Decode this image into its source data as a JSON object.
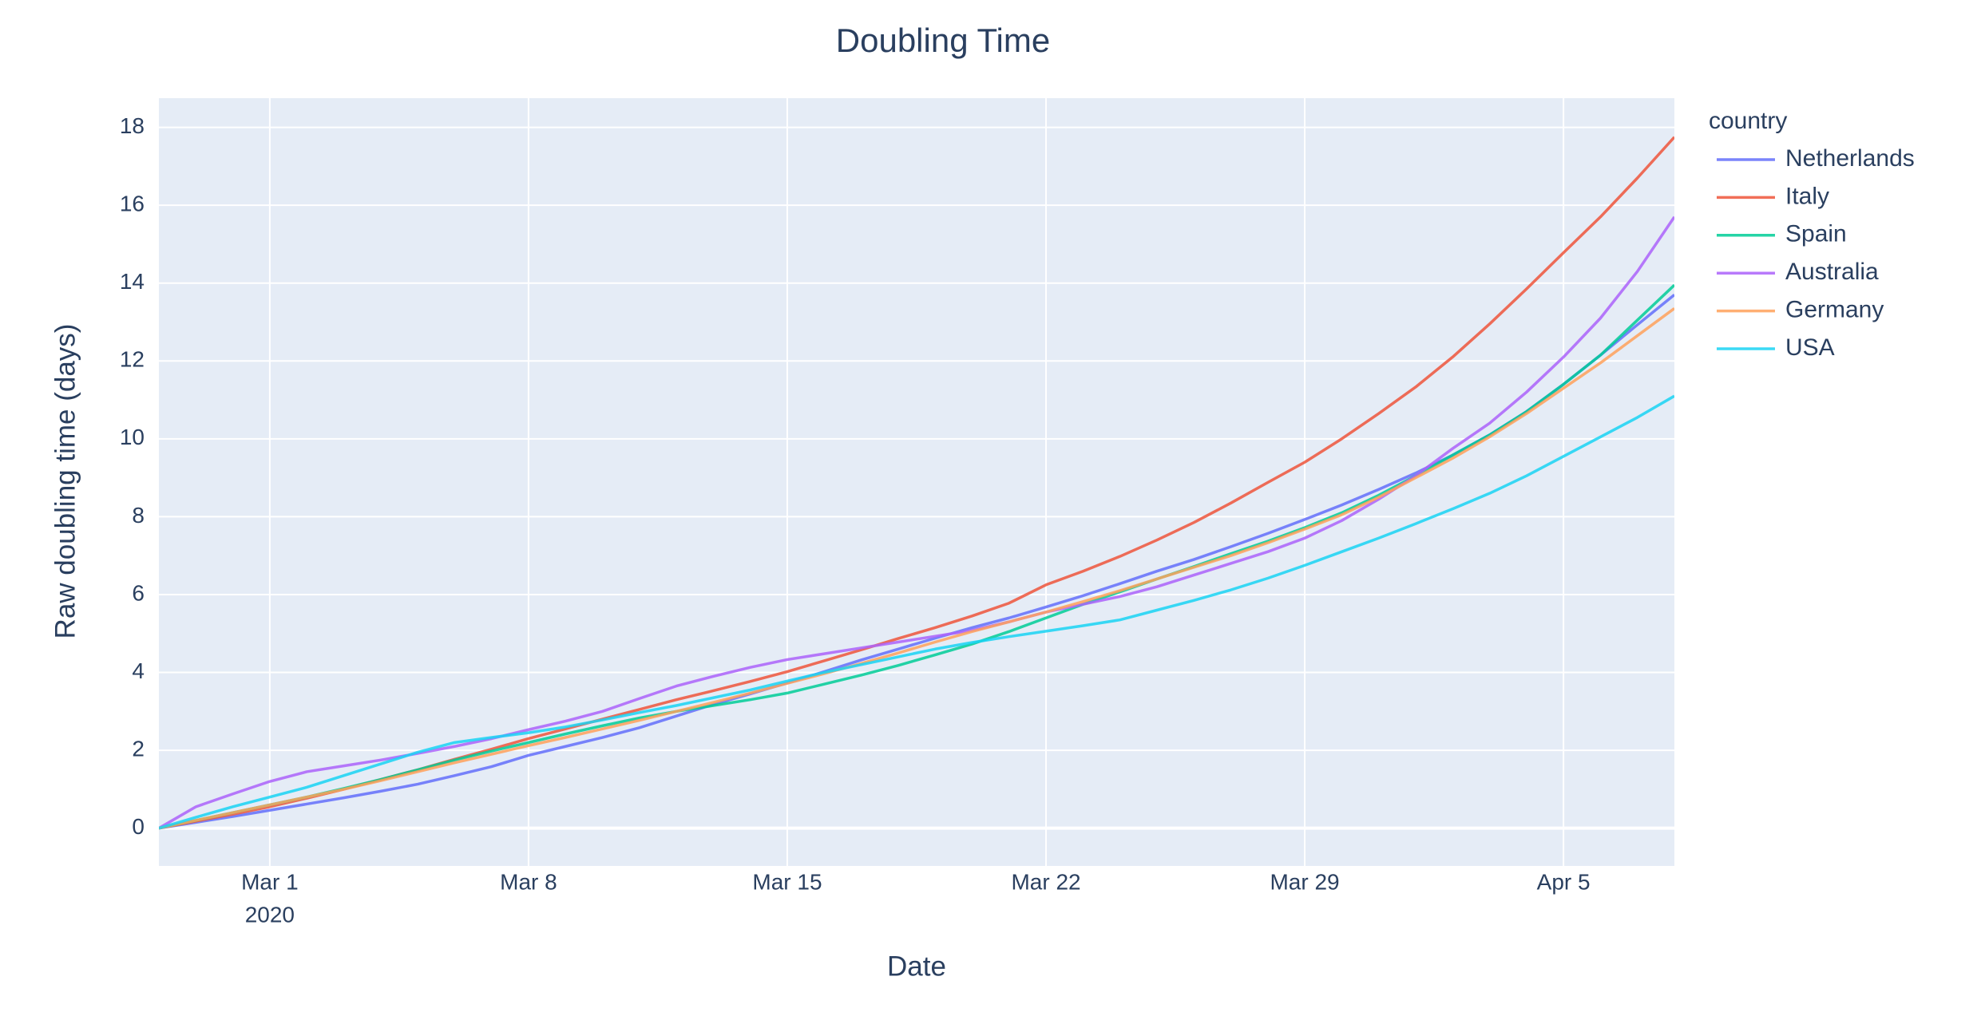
{
  "chart_data": {
    "type": "line",
    "title": "Doubling Time",
    "x_label": "Date",
    "y_label": "Raw doubling time (days)",
    "legend_title": "country",
    "legend": "right",
    "x": [
      "2020-02-27",
      "2020-02-28",
      "2020-02-29",
      "2020-03-01",
      "2020-03-02",
      "2020-03-03",
      "2020-03-04",
      "2020-03-05",
      "2020-03-06",
      "2020-03-07",
      "2020-03-08",
      "2020-03-09",
      "2020-03-10",
      "2020-03-11",
      "2020-03-12",
      "2020-03-13",
      "2020-03-14",
      "2020-03-15",
      "2020-03-16",
      "2020-03-17",
      "2020-03-18",
      "2020-03-19",
      "2020-03-20",
      "2020-03-21",
      "2020-03-22",
      "2020-03-23",
      "2020-03-24",
      "2020-03-25",
      "2020-03-26",
      "2020-03-27",
      "2020-03-28",
      "2020-03-29",
      "2020-03-30",
      "2020-03-31",
      "2020-04-01",
      "2020-04-02",
      "2020-04-03",
      "2020-04-04",
      "2020-04-05",
      "2020-04-06",
      "2020-04-07",
      "2020-04-08"
    ],
    "xlim": [
      "2020-02-27",
      "2020-04-08"
    ],
    "xticks": [
      {
        "value": "2020-03-01",
        "label": "Mar 1"
      },
      {
        "value": "2020-03-08",
        "label": "Mar 8"
      },
      {
        "value": "2020-03-15",
        "label": "Mar 15"
      },
      {
        "value": "2020-03-22",
        "label": "Mar 22"
      },
      {
        "value": "2020-03-29",
        "label": "Mar 29"
      },
      {
        "value": "2020-04-05",
        "label": "Apr 5"
      }
    ],
    "x_year_label": "2020",
    "ylim": [
      -0.97,
      18.75
    ],
    "yticks": [
      0,
      2,
      4,
      6,
      8,
      10,
      12,
      14,
      16,
      18
    ],
    "grid": true,
    "series": [
      {
        "name": "Netherlands",
        "color": "#636efa",
        "values": [
          0,
          0.15,
          0.3,
          0.46,
          0.62,
          0.78,
          0.95,
          1.13,
          1.35,
          1.58,
          1.87,
          2.1,
          2.33,
          2.58,
          2.88,
          3.18,
          3.45,
          3.73,
          4.02,
          4.32,
          4.6,
          4.88,
          5.15,
          5.4,
          5.68,
          5.97,
          6.28,
          6.6,
          6.9,
          7.23,
          7.57,
          7.93,
          8.3,
          8.7,
          9.12,
          9.58,
          10.1,
          10.7,
          11.4,
          12.15,
          12.93,
          13.7
        ]
      },
      {
        "name": "Italy",
        "color": "#ef553b",
        "values": [
          0,
          0.18,
          0.36,
          0.55,
          0.77,
          1.0,
          1.25,
          1.5,
          1.77,
          2.03,
          2.3,
          2.55,
          2.8,
          3.05,
          3.3,
          3.53,
          3.77,
          4.02,
          4.3,
          4.58,
          4.87,
          5.15,
          5.45,
          5.78,
          6.25,
          6.6,
          6.98,
          7.4,
          7.85,
          8.35,
          8.88,
          9.4,
          10.0,
          10.65,
          11.33,
          12.1,
          12.95,
          13.85,
          14.78,
          15.7,
          16.7,
          17.75
        ]
      },
      {
        "name": "Spain",
        "color": "#00cc96",
        "values": [
          0,
          0.2,
          0.4,
          0.6,
          0.8,
          1.02,
          1.25,
          1.5,
          1.75,
          1.98,
          2.2,
          2.42,
          2.63,
          2.83,
          3.0,
          3.15,
          3.3,
          3.47,
          3.7,
          3.93,
          4.18,
          4.45,
          4.73,
          5.05,
          5.4,
          5.75,
          6.07,
          6.4,
          6.72,
          7.05,
          7.37,
          7.72,
          8.1,
          8.55,
          9.05,
          9.58,
          10.1,
          10.7,
          11.4,
          12.15,
          13.05,
          13.95
        ]
      },
      {
        "name": "Australia",
        "color": "#ab63fa",
        "values": [
          0,
          0.55,
          0.88,
          1.2,
          1.45,
          1.6,
          1.75,
          1.92,
          2.1,
          2.3,
          2.53,
          2.75,
          3.0,
          3.33,
          3.65,
          3.9,
          4.13,
          4.33,
          4.48,
          4.63,
          4.78,
          4.93,
          5.08,
          5.3,
          5.55,
          5.75,
          5.95,
          6.2,
          6.5,
          6.8,
          7.1,
          7.45,
          7.9,
          8.45,
          9.05,
          9.75,
          10.4,
          11.2,
          12.1,
          13.1,
          14.3,
          15.7
        ]
      },
      {
        "name": "Germany",
        "color": "#ffa15a",
        "values": [
          0,
          0.2,
          0.4,
          0.6,
          0.8,
          1.0,
          1.22,
          1.45,
          1.68,
          1.9,
          2.12,
          2.33,
          2.55,
          2.77,
          3.0,
          3.23,
          3.47,
          3.72,
          3.97,
          4.23,
          4.5,
          4.78,
          5.05,
          5.3,
          5.55,
          5.82,
          6.1,
          6.4,
          6.7,
          7.0,
          7.33,
          7.68,
          8.05,
          8.5,
          9.0,
          9.5,
          10.05,
          10.65,
          11.3,
          11.95,
          12.65,
          13.35
        ]
      },
      {
        "name": "USA",
        "color": "#19d3f3",
        "values": [
          0,
          0.28,
          0.55,
          0.8,
          1.05,
          1.35,
          1.65,
          1.95,
          2.2,
          2.33,
          2.45,
          2.6,
          2.78,
          2.97,
          3.15,
          3.35,
          3.55,
          3.78,
          4.0,
          4.2,
          4.4,
          4.6,
          4.77,
          4.92,
          5.06,
          5.2,
          5.35,
          5.6,
          5.85,
          6.12,
          6.42,
          6.75,
          7.1,
          7.45,
          7.82,
          8.2,
          8.6,
          9.05,
          9.55,
          10.05,
          10.55,
          11.1
        ]
      }
    ]
  }
}
